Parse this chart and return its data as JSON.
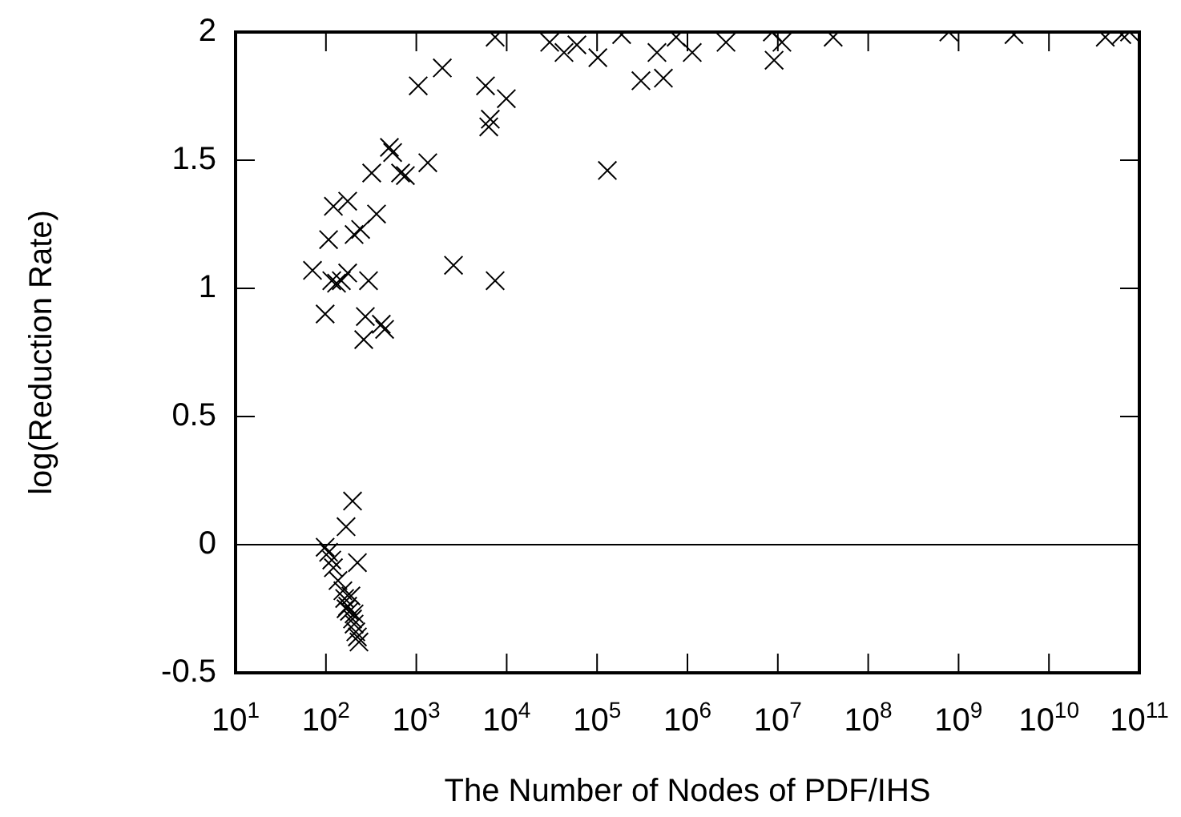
{
  "chart_data": {
    "type": "scatter",
    "xlabel": "The Number of Nodes of PDF/IHS",
    "ylabel": "log(Reduction Rate)",
    "log": "x",
    "marker": "cross",
    "color": "#000000",
    "xlim": [
      10,
      100000000000
    ],
    "xticks": [
      {
        "value": 10,
        "label": "10$^{1}$"
      },
      {
        "value": 100,
        "label": "10$^{2}$"
      },
      {
        "value": 1000,
        "label": "10$^{3}$"
      },
      {
        "value": 10000,
        "label": "10$^{4}$"
      },
      {
        "value": 100000,
        "label": "10$^{5}$"
      },
      {
        "value": 1000000,
        "label": "10$^{6}$"
      },
      {
        "value": 10000000,
        "label": "10$^{7}$"
      },
      {
        "value": 100000000,
        "label": "10$^{8}$"
      },
      {
        "value": 1000000000,
        "label": "10$^{9}$"
      },
      {
        "value": 10000000000,
        "label": "10$^{10}$"
      },
      {
        "value": 100000000000,
        "label": "10$^{11}$"
      }
    ],
    "ylim": [
      -0.5,
      2
    ],
    "yticks": [
      -0.5,
      0,
      0.5,
      1,
      1.5,
      2
    ],
    "ref_lines": [
      {
        "axis": "y",
        "value": 0,
        "color": "#000000"
      }
    ],
    "x": [
      71,
      98,
      116,
      131,
      148,
      174,
      107,
      121,
      174,
      205,
      242,
      363,
      296,
      273,
      446,
      262,
      321,
      547,
      670,
      757,
      1340,
      504,
      2580,
      7450,
      410,
      1050,
      1940,
      5830,
      9910,
      6590,
      6330,
      7450,
      29900,
      43100,
      59800,
      102000,
      187000,
      306000,
      460000,
      542000,
      750000,
      1130000,
      2670000,
      130000,
      8700000,
      11100000,
      9100000,
      41000000,
      780000000,
      4100000000,
      42000000000,
      64000000000,
      78000000000,
      197,
      167,
      223,
      98,
      107,
      116,
      121,
      136,
      154,
      161,
      174,
      182,
      197,
      205,
      214,
      223,
      232,
      189,
      167,
      205
    ],
    "values": [
      1.07,
      0.9,
      1.03,
      1.02,
      1.03,
      1.06,
      1.19,
      1.32,
      1.34,
      1.21,
      1.23,
      1.29,
      1.03,
      0.89,
      0.84,
      0.8,
      1.45,
      1.53,
      1.45,
      1.44,
      1.49,
      1.55,
      1.09,
      1.03,
      0.86,
      1.79,
      1.86,
      1.79,
      1.74,
      1.66,
      1.63,
      1.98,
      1.96,
      1.92,
      1.95,
      1.9,
      1.99,
      1.81,
      1.92,
      1.82,
      1.98,
      1.92,
      1.96,
      1.46,
      2,
      1.96,
      1.89,
      1.98,
      2,
      1.99,
      1.98,
      1.99,
      2,
      0.17,
      0.07,
      -0.07,
      -0.01,
      -0.03,
      -0.06,
      -0.09,
      -0.14,
      -0.18,
      -0.21,
      -0.24,
      -0.26,
      -0.29,
      -0.31,
      -0.34,
      -0.36,
      -0.38,
      -0.2,
      -0.25,
      -0.27
    ]
  }
}
